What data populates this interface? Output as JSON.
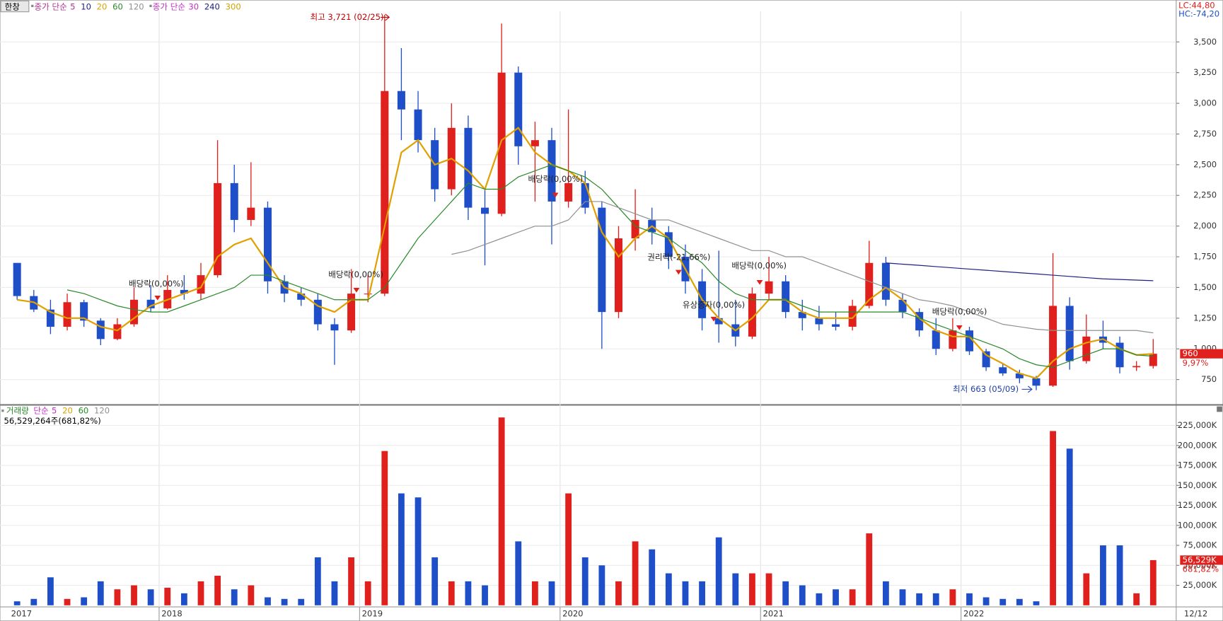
{
  "chart_data": [
    {
      "type": "candlestick",
      "symbol": "한창",
      "legend_groups": [
        {
          "label": "종가 단순",
          "series_index": [
            0,
            1,
            2,
            3,
            4
          ]
        },
        {
          "label": "종가 단순",
          "series_index": [
            5,
            6,
            7
          ]
        }
      ],
      "categories": [
        "2017",
        null,
        null,
        null,
        null,
        null,
        null,
        null,
        null,
        "2018",
        null,
        null,
        null,
        null,
        null,
        null,
        null,
        null,
        null,
        null,
        null,
        "2019",
        null,
        null,
        null,
        null,
        null,
        null,
        null,
        null,
        null,
        null,
        null,
        "2020",
        null,
        null,
        null,
        null,
        null,
        null,
        null,
        null,
        null,
        null,
        null,
        "2021",
        null,
        null,
        null,
        null,
        null,
        null,
        null,
        null,
        null,
        null,
        null,
        "2022",
        null,
        null,
        null,
        null,
        null,
        null,
        null,
        null,
        null,
        null,
        null
      ],
      "open": [
        1700,
        1430,
        1320,
        1180,
        1380,
        1230,
        1080,
        1200,
        1400,
        1330,
        1480,
        1450,
        1600,
        2350,
        2050,
        2150,
        1550,
        1450,
        1400,
        1200,
        1150,
        1450,
        1450,
        3100,
        2950,
        2700,
        2300,
        2800,
        2150,
        2100,
        3250,
        2650,
        2700,
        2200,
        2350,
        2150,
        1300,
        1900,
        2050,
        1950,
        1750,
        1550,
        1250,
        1200,
        1100,
        1450,
        1550,
        1300,
        1250,
        1200,
        1180,
        1350,
        1700,
        1400,
        1300,
        1150,
        1000,
        1150,
        980,
        850,
        800,
        760,
        700,
        1350,
        900,
        1100,
        1050,
        850,
        860
      ],
      "high": [
        1700,
        1480,
        1400,
        1450,
        1400,
        1250,
        1250,
        1500,
        1520,
        1600,
        1600,
        1700,
        2700,
        2500,
        2520,
        2200,
        1600,
        1500,
        1450,
        1250,
        1650,
        1600,
        3721,
        3450,
        3100,
        2800,
        3000,
        2900,
        2300,
        3650,
        3300,
        2850,
        2800,
        2950,
        2450,
        2200,
        2000,
        2300,
        2150,
        2000,
        1850,
        1650,
        1800,
        1400,
        1500,
        1750,
        1600,
        1400,
        1350,
        1300,
        1400,
        1880,
        1750,
        1450,
        1330,
        1250,
        1250,
        1180,
        1000,
        880,
        830,
        780,
        1780,
        1420,
        1280,
        1230,
        1100,
        900,
        1080
      ],
      "low": [
        1400,
        1300,
        1120,
        1150,
        1180,
        1030,
        1070,
        1180,
        1300,
        1320,
        1400,
        1400,
        1580,
        1950,
        2000,
        1450,
        1380,
        1350,
        1150,
        870,
        1130,
        1380,
        1430,
        2700,
        2600,
        2200,
        2250,
        2050,
        1680,
        2080,
        2500,
        2200,
        1850,
        2150,
        2100,
        1000,
        1250,
        1800,
        1850,
        1650,
        1450,
        1150,
        1050,
        1020,
        1080,
        1400,
        1250,
        1150,
        1150,
        1150,
        1150,
        1330,
        1350,
        1250,
        1100,
        950,
        980,
        950,
        820,
        780,
        720,
        663,
        690,
        830,
        880,
        1000,
        800,
        820,
        840
      ],
      "close": [
        1430,
        1320,
        1180,
        1380,
        1230,
        1080,
        1200,
        1400,
        1330,
        1480,
        1450,
        1600,
        2350,
        2050,
        2150,
        1550,
        1450,
        1400,
        1200,
        1150,
        1450,
        1450,
        3100,
        2950,
        2700,
        2300,
        2800,
        2150,
        2100,
        3250,
        2650,
        2700,
        2200,
        2350,
        2150,
        1300,
        1900,
        2050,
        1950,
        1750,
        1550,
        1250,
        1200,
        1100,
        1450,
        1550,
        1300,
        1250,
        1200,
        1180,
        1350,
        1700,
        1400,
        1300,
        1150,
        1000,
        1150,
        980,
        850,
        800,
        760,
        700,
        1350,
        900,
        1100,
        1050,
        850,
        860,
        960
      ],
      "up_color": "#e0201c",
      "down_color": "#1f4fc8",
      "series": [
        {
          "name": "5",
          "color": "#b0308f"
        },
        {
          "name": "10",
          "color": "#202080"
        },
        {
          "name": "20",
          "color": "#e0a000",
          "values": [
            1400,
            1380,
            1300,
            1250,
            1250,
            1180,
            1150,
            1250,
            1350,
            1400,
            1450,
            1500,
            1750,
            1850,
            1900,
            1700,
            1500,
            1450,
            1350,
            1300,
            1400,
            1400,
            2000,
            2600,
            2700,
            2500,
            2550,
            2450,
            2300,
            2700,
            2800,
            2600,
            2500,
            2450,
            2350,
            1950,
            1750,
            1900,
            2000,
            1900,
            1650,
            1400,
            1250,
            1150,
            1250,
            1400,
            1400,
            1300,
            1250,
            1250,
            1250,
            1400,
            1500,
            1400,
            1250,
            1150,
            1100,
            1100,
            950,
            880,
            800,
            760,
            900,
            1000,
            1050,
            1080,
            1000,
            950,
            960
          ]
        },
        {
          "name": "60",
          "color": "#2a8a2a",
          "values": [
            null,
            null,
            null,
            1480,
            1450,
            1400,
            1350,
            1320,
            1300,
            1300,
            1350,
            1400,
            1450,
            1500,
            1600,
            1600,
            1550,
            1500,
            1450,
            1400,
            1400,
            1400,
            1500,
            1700,
            1900,
            2050,
            2200,
            2350,
            2300,
            2300,
            2400,
            2450,
            2500,
            2450,
            2400,
            2300,
            2150,
            2000,
            1950,
            1900,
            1800,
            1700,
            1550,
            1450,
            1400,
            1400,
            1400,
            1350,
            1300,
            1300,
            1300,
            1300,
            1300,
            1300,
            1250,
            1200,
            1150,
            1100,
            1050,
            1000,
            920,
            870,
            850,
            900,
            950,
            1000,
            1000,
            950,
            940
          ]
        },
        {
          "name": "120",
          "color": "#909090",
          "values": [
            null,
            null,
            null,
            null,
            null,
            null,
            null,
            null,
            null,
            null,
            null,
            null,
            null,
            null,
            null,
            null,
            null,
            null,
            null,
            null,
            null,
            null,
            null,
            null,
            null,
            null,
            1770,
            1800,
            1850,
            1900,
            1950,
            2000,
            2000,
            2050,
            2200,
            2200,
            2150,
            2100,
            2050,
            2050,
            2000,
            1950,
            1900,
            1850,
            1800,
            1800,
            1750,
            1750,
            1700,
            1650,
            1600,
            1550,
            1500,
            1450,
            1400,
            1380,
            1350,
            1300,
            1250,
            1200,
            1180,
            1160,
            1150,
            1150,
            1150,
            1150,
            1150,
            1150,
            1130
          ]
        },
        {
          "name": "30",
          "color": "#c030c0"
        },
        {
          "name": "240",
          "color": "#202080",
          "values": [
            null,
            null,
            null,
            null,
            null,
            null,
            null,
            null,
            null,
            null,
            null,
            null,
            null,
            null,
            null,
            null,
            null,
            null,
            null,
            null,
            null,
            null,
            null,
            null,
            null,
            null,
            null,
            null,
            null,
            null,
            null,
            null,
            null,
            null,
            null,
            null,
            null,
            null,
            null,
            null,
            null,
            null,
            null,
            null,
            null,
            null,
            null,
            null,
            null,
            null,
            null,
            null,
            1700,
            1690,
            1680,
            1670,
            1660,
            1650,
            1640,
            1630,
            1620,
            1610,
            1600,
            1590,
            1580,
            1570,
            1565,
            1560,
            1555
          ]
        },
        {
          "name": "300",
          "color": "#d0a000"
        }
      ],
      "ylim": [
        550,
        3790
      ],
      "yticks": [
        750,
        {
          "value": 1000,
          "label": "1,000"
        },
        {
          "value": 1250,
          "label": "1,250"
        },
        {
          "value": 1500,
          "label": "1,500"
        },
        {
          "value": 1750,
          "label": "1,750"
        },
        {
          "value": 2000,
          "label": "2,000"
        },
        {
          "value": 2250,
          "label": "2,250"
        },
        {
          "value": 2500,
          "label": "2,500"
        },
        {
          "value": 2750,
          "label": "2,750"
        },
        {
          "value": 3000,
          "label": "3,000"
        },
        {
          "value": 3250,
          "label": "3,250"
        },
        {
          "value": 3500,
          "label": "3,500"
        }
      ],
      "grid": true,
      "annotations": [
        "최고 3,721 (02/25)",
        "최저 663 (05/09)",
        "배당락(0,00%)",
        "배당락(0,00%)",
        "배당락(0,00%)",
        "배당락(0,00%)",
        "배당락(0,00%)",
        "권리락(-21,66%)",
        "유상증자(0,00%)"
      ],
      "lc_label": "LC:44,80",
      "hc_label": "HC:-74,20",
      "change_label": "9,97%"
    },
    {
      "type": "bar",
      "title": "거래량",
      "ma_label": "단순",
      "ma_items": [
        {
          "name": "5",
          "color": "#c030c0"
        },
        {
          "name": "20",
          "color": "#e0a000"
        },
        {
          "name": "60",
          "color": "#2a8a2a"
        },
        {
          "name": "120",
          "color": "#909090"
        }
      ],
      "info": "56,529,264주(681,82%)",
      "values": [
        5000,
        8000,
        35000,
        8000,
        10000,
        30000,
        20000,
        25000,
        20000,
        22000,
        15000,
        30000,
        37000,
        20000,
        25000,
        10000,
        8000,
        8000,
        60000,
        30000,
        60000,
        30000,
        193000,
        140000,
        135000,
        60000,
        30000,
        30000,
        25000,
        235000,
        80000,
        30000,
        30000,
        140000,
        60000,
        50000,
        30000,
        80000,
        70000,
        40000,
        30000,
        30000,
        85000,
        40000,
        40000,
        40000,
        30000,
        25000,
        15000,
        20000,
        20000,
        90000,
        30000,
        20000,
        15000,
        15000,
        20000,
        15000,
        10000,
        8000,
        8000,
        5000,
        218000,
        196000,
        40000,
        75000,
        75000,
        15000,
        56529.264
      ],
      "value_labels": [
        null,
        null,
        null,
        null,
        null,
        null,
        null,
        null,
        null,
        null,
        null,
        null,
        null,
        null,
        null,
        null,
        null,
        null,
        null,
        null,
        null,
        null,
        null,
        null,
        null,
        null,
        null,
        null,
        null,
        null,
        null,
        null,
        null,
        null,
        null,
        null,
        null,
        null,
        null,
        null,
        null,
        null,
        null,
        null,
        null,
        null,
        null,
        null,
        null,
        null,
        null,
        null,
        null,
        null,
        null,
        null,
        null,
        null,
        null,
        null,
        null,
        null,
        null,
        null,
        null,
        null,
        null,
        null,
        "56,529K"
      ],
      "change_label": "681,82%",
      "ylim": [
        0,
        240000
      ],
      "yticks": [
        {
          "value": 25000,
          "label": "25,000K"
        },
        {
          "value": 50000,
          "label": "50,000K"
        },
        {
          "value": 75000,
          "label": "75,000K"
        },
        {
          "value": 100000,
          "label": "100,000K"
        },
        {
          "value": 125000,
          "label": "125,000K"
        },
        {
          "value": 150000,
          "label": "150,000K"
        },
        {
          "value": 175000,
          "label": "175,000K"
        },
        {
          "value": 200000,
          "label": "200,000K"
        },
        {
          "value": 225000,
          "label": "225,000K"
        }
      ],
      "grid": true,
      "last_date": "12/12"
    }
  ]
}
